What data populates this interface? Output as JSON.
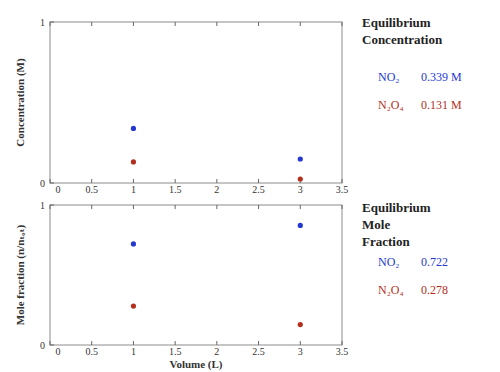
{
  "chart_data": [
    {
      "type": "scatter",
      "y_label": "Concentration (M)",
      "legend_title": "Equilibrium Concentration",
      "xlim": [
        0,
        3.5
      ],
      "xticks": [
        0,
        0.5,
        1,
        1.5,
        2,
        2.5,
        3,
        3.5
      ],
      "ylim": [
        0,
        1
      ],
      "yticks": [
        0,
        1
      ],
      "grid": false,
      "series": [
        {
          "name": "NO₂",
          "color": "#2438d0",
          "marker": "circle",
          "x": [
            1,
            3
          ],
          "values": [
            0.339,
            0.149
          ],
          "equilibrium_label": "0.339 M"
        },
        {
          "name": "N₂O₄",
          "color": "#b3301e",
          "marker": "circle",
          "x": [
            1,
            3
          ],
          "values": [
            0.131,
            0.025
          ],
          "equilibrium_label": "0.131 M"
        }
      ]
    },
    {
      "type": "scatter",
      "y_label": "Mole fraction (n/nₜₒₜ)",
      "x_label": "Volume (L)",
      "legend_title": "Equilibrium Mole Fraction",
      "xlim": [
        0,
        3.5
      ],
      "xticks": [
        0,
        0.5,
        1,
        1.5,
        2,
        2.5,
        3,
        3.5
      ],
      "ylim": [
        0,
        1
      ],
      "yticks": [
        0,
        1
      ],
      "grid": false,
      "series": [
        {
          "name": "NO₂",
          "color": "#2438d0",
          "marker": "circle",
          "x": [
            1,
            3
          ],
          "values": [
            0.722,
            0.854
          ],
          "equilibrium_label": "0.722"
        },
        {
          "name": "N₂O₄",
          "color": "#b3301e",
          "marker": "circle",
          "x": [
            1,
            3
          ],
          "values": [
            0.278,
            0.146
          ],
          "equilibrium_label": "0.278"
        }
      ]
    }
  ]
}
